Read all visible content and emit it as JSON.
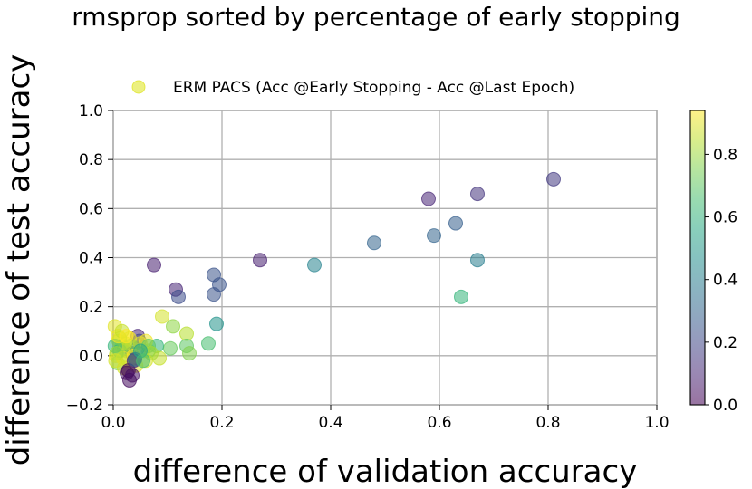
{
  "chart_data": {
    "type": "scatter",
    "title": "rmsprop sorted by percentage of early stopping",
    "xlabel": "difference of validation accuracy",
    "ylabel": "difference of test accuracy",
    "xlim": [
      0.0,
      1.0
    ],
    "ylim": [
      -0.2,
      1.0
    ],
    "xticks": [
      "0.0",
      "0.2",
      "0.4",
      "0.6",
      "0.8",
      "1.0"
    ],
    "yticks": [
      "−0.2",
      "0.0",
      "0.2",
      "0.4",
      "0.6",
      "0.8",
      "1.0"
    ],
    "grid": true,
    "legend": {
      "position": "top-center",
      "entries": [
        "ERM PACS (Acc @Early Stopping - Acc @Last Epoch)"
      ]
    },
    "colorbar": {
      "colormap": "viridis",
      "range": [
        0.0,
        0.94
      ],
      "ticks": [
        "0.0",
        "0.2",
        "0.4",
        "0.6",
        "0.8"
      ]
    },
    "point_alpha": 0.55,
    "series": [
      {
        "points": [
          {
            "x": 0.81,
            "y": 0.72,
            "c": 0.16
          },
          {
            "x": 0.67,
            "y": 0.66,
            "c": 0.14
          },
          {
            "x": 0.58,
            "y": 0.64,
            "c": 0.1
          },
          {
            "x": 0.63,
            "y": 0.54,
            "c": 0.28
          },
          {
            "x": 0.59,
            "y": 0.49,
            "c": 0.3
          },
          {
            "x": 0.48,
            "y": 0.46,
            "c": 0.3
          },
          {
            "x": 0.67,
            "y": 0.39,
            "c": 0.4
          },
          {
            "x": 0.64,
            "y": 0.24,
            "c": 0.62
          },
          {
            "x": 0.37,
            "y": 0.37,
            "c": 0.42
          },
          {
            "x": 0.27,
            "y": 0.39,
            "c": 0.08
          },
          {
            "x": 0.075,
            "y": 0.37,
            "c": 0.08
          },
          {
            "x": 0.185,
            "y": 0.33,
            "c": 0.24
          },
          {
            "x": 0.195,
            "y": 0.29,
            "c": 0.24
          },
          {
            "x": 0.185,
            "y": 0.25,
            "c": 0.24
          },
          {
            "x": 0.115,
            "y": 0.27,
            "c": 0.1
          },
          {
            "x": 0.12,
            "y": 0.24,
            "c": 0.22
          },
          {
            "x": 0.19,
            "y": 0.13,
            "c": 0.48
          },
          {
            "x": 0.09,
            "y": 0.16,
            "c": 0.88
          },
          {
            "x": 0.11,
            "y": 0.12,
            "c": 0.78
          },
          {
            "x": 0.135,
            "y": 0.09,
            "c": 0.84
          },
          {
            "x": 0.175,
            "y": 0.05,
            "c": 0.66
          },
          {
            "x": 0.135,
            "y": 0.04,
            "c": 0.7
          },
          {
            "x": 0.14,
            "y": 0.01,
            "c": 0.76
          },
          {
            "x": 0.105,
            "y": 0.03,
            "c": 0.72
          },
          {
            "x": 0.08,
            "y": 0.04,
            "c": 0.62
          },
          {
            "x": 0.085,
            "y": -0.01,
            "c": 0.86
          },
          {
            "x": 0.065,
            "y": 0.02,
            "c": 0.76
          },
          {
            "x": 0.045,
            "y": 0.08,
            "c": 0.1
          },
          {
            "x": 0.048,
            "y": 0.06,
            "c": 0.2
          },
          {
            "x": 0.003,
            "y": 0.12,
            "c": 0.9
          },
          {
            "x": 0.01,
            "y": 0.06,
            "c": 0.88
          },
          {
            "x": 0.015,
            "y": 0.04,
            "c": 0.8
          },
          {
            "x": 0.02,
            "y": 0.03,
            "c": 0.7
          },
          {
            "x": 0.025,
            "y": 0.02,
            "c": 0.86
          },
          {
            "x": 0.03,
            "y": 0.07,
            "c": 0.92
          },
          {
            "x": 0.035,
            "y": 0.01,
            "c": 0.3
          },
          {
            "x": 0.04,
            "y": -0.01,
            "c": 0.05
          },
          {
            "x": 0.045,
            "y": 0.03,
            "c": 0.4
          },
          {
            "x": 0.05,
            "y": 0.05,
            "c": 0.9
          },
          {
            "x": 0.055,
            "y": 0.02,
            "c": 0.78
          },
          {
            "x": 0.06,
            "y": 0.06,
            "c": 0.92
          },
          {
            "x": 0.06,
            "y": -0.02,
            "c": 0.88
          },
          {
            "x": 0.065,
            "y": 0.04,
            "c": 0.7
          },
          {
            "x": 0.07,
            "y": 0.01,
            "c": 0.82
          },
          {
            "x": 0.005,
            "y": 0.0,
            "c": 0.94
          },
          {
            "x": 0.008,
            "y": -0.03,
            "c": 0.74
          },
          {
            "x": 0.012,
            "y": 0.02,
            "c": 0.6
          },
          {
            "x": 0.018,
            "y": -0.01,
            "c": 0.92
          },
          {
            "x": 0.022,
            "y": 0.05,
            "c": 0.9
          },
          {
            "x": 0.028,
            "y": -0.02,
            "c": 0.86
          },
          {
            "x": 0.032,
            "y": 0.04,
            "c": 0.8
          },
          {
            "x": 0.038,
            "y": 0.0,
            "c": 0.94
          },
          {
            "x": 0.042,
            "y": -0.04,
            "c": 0.9
          },
          {
            "x": 0.012,
            "y": 0.07,
            "c": 0.84
          },
          {
            "x": 0.02,
            "y": -0.05,
            "c": 0.88
          },
          {
            "x": 0.025,
            "y": -0.07,
            "c": 0.05
          },
          {
            "x": 0.028,
            "y": -0.06,
            "c": 0.02
          },
          {
            "x": 0.03,
            "y": -0.1,
            "c": 0.03
          },
          {
            "x": 0.035,
            "y": -0.08,
            "c": 0.04
          },
          {
            "x": 0.038,
            "y": -0.02,
            "c": 0.1
          },
          {
            "x": 0.04,
            "y": -0.015,
            "c": 0.3
          },
          {
            "x": 0.05,
            "y": 0.02,
            "c": 0.55
          },
          {
            "x": 0.055,
            "y": -0.02,
            "c": 0.66
          },
          {
            "x": 0.003,
            "y": 0.04,
            "c": 0.62
          },
          {
            "x": 0.006,
            "y": 0.01,
            "c": 0.8
          },
          {
            "x": 0.009,
            "y": 0.08,
            "c": 0.92
          },
          {
            "x": 0.016,
            "y": 0.1,
            "c": 0.86
          },
          {
            "x": 0.024,
            "y": 0.08,
            "c": 0.94
          },
          {
            "x": 0.004,
            "y": -0.02,
            "c": 0.88
          }
        ]
      }
    ]
  }
}
